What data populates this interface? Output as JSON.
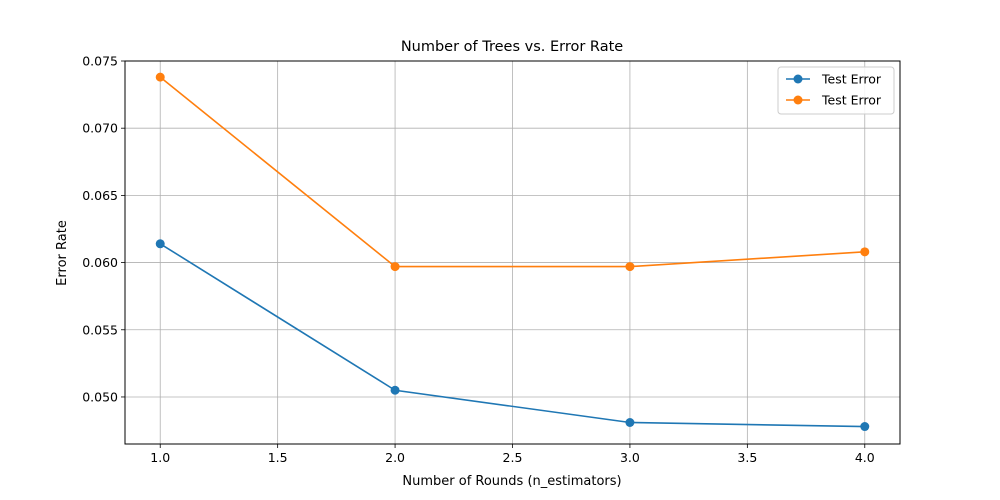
{
  "chart_data": {
    "type": "line",
    "title": "Number of Trees vs. Error Rate",
    "xlabel": "Number of Rounds (n_estimators)",
    "ylabel": "Error Rate",
    "x": [
      1.0,
      2.0,
      3.0,
      4.0
    ],
    "xlim": [
      0.85,
      4.15
    ],
    "ylim": [
      0.0465,
      0.075
    ],
    "xticks": [
      1.0,
      1.5,
      2.0,
      2.5,
      3.0,
      3.5,
      4.0
    ],
    "xtick_labels": [
      "1.0",
      "1.5",
      "2.0",
      "2.5",
      "3.0",
      "3.5",
      "4.0"
    ],
    "yticks": [
      0.05,
      0.055,
      0.06,
      0.065,
      0.07,
      0.075
    ],
    "ytick_labels": [
      "0.050",
      "0.055",
      "0.060",
      "0.065",
      "0.070",
      "0.075"
    ],
    "grid": true,
    "legend_position": "top-right",
    "series": [
      {
        "name": "Test Error",
        "color": "#1f77b4",
        "values": [
          0.0614,
          0.0505,
          0.0481,
          0.0478
        ]
      },
      {
        "name": "Test Error",
        "color": "#ff7f0e",
        "values": [
          0.0738,
          0.0597,
          0.0597,
          0.0608
        ]
      }
    ]
  }
}
